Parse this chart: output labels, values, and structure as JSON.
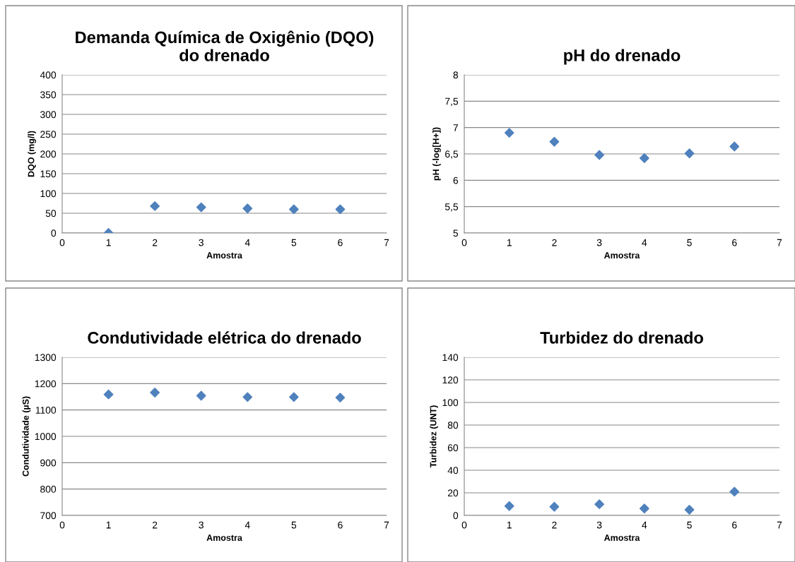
{
  "chart_data": [
    {
      "type": "scatter",
      "title": "Demanda Química de Oxigênio (DQO)\ndo drenado",
      "xlabel": "Amostra",
      "ylabel": "DQO (mg/l)",
      "x": [
        1,
        2,
        3,
        4,
        5,
        6
      ],
      "series": [
        {
          "color": "#4f81bd",
          "values": [
            0,
            68,
            65,
            62,
            60,
            60
          ]
        }
      ],
      "xlim": [
        0,
        7
      ],
      "xticks": [
        0,
        1,
        2,
        3,
        4,
        5,
        6,
        7
      ],
      "ylim": [
        0,
        400
      ],
      "yticks": [
        0,
        50,
        100,
        150,
        200,
        250,
        300,
        350,
        400
      ],
      "grid": "y",
      "marker": "diamond",
      "legend": false
    },
    {
      "type": "scatter",
      "title": "pH do drenado",
      "xlabel": "Amostra",
      "ylabel": "pH (-log[H+])",
      "x": [
        1,
        2,
        3,
        4,
        5,
        6
      ],
      "series": [
        {
          "color": "#4f81bd",
          "values": [
            6.9,
            6.73,
            6.48,
            6.42,
            6.51,
            6.64
          ]
        }
      ],
      "xlim": [
        0,
        7
      ],
      "xticks": [
        0,
        1,
        2,
        3,
        4,
        5,
        6,
        7
      ],
      "ylim": [
        5,
        8
      ],
      "yticks": [
        5,
        {
          "value": 5.5,
          "label": "5,5"
        },
        6,
        {
          "value": 6.5,
          "label": "6,5"
        },
        7,
        {
          "value": 7.5,
          "label": "7,5"
        },
        8
      ],
      "grid": "y",
      "marker": "diamond",
      "legend": false
    },
    {
      "type": "scatter",
      "title": "Condutividade elétrica do drenado",
      "xlabel": "Amostra",
      "ylabel": "Condutividade (µS)",
      "x": [
        1,
        2,
        3,
        4,
        5,
        6
      ],
      "series": [
        {
          "color": "#4f81bd",
          "values": [
            1159,
            1166,
            1154,
            1149,
            1149,
            1147
          ]
        }
      ],
      "xlim": [
        0,
        7
      ],
      "xticks": [
        0,
        1,
        2,
        3,
        4,
        5,
        6,
        7
      ],
      "ylim": [
        700,
        1300
      ],
      "yticks": [
        700,
        800,
        900,
        1000,
        1100,
        1200,
        1300
      ],
      "grid": "y",
      "marker": "diamond",
      "legend": false
    },
    {
      "type": "scatter",
      "title": "Turbidez do drenado",
      "xlabel": "Amostra",
      "ylabel": "Turbidez (UNT)",
      "x": [
        1,
        2,
        3,
        4,
        5,
        6
      ],
      "series": [
        {
          "color": "#4f81bd",
          "values": [
            8.3,
            7.7,
            9.9,
            6.1,
            5.0,
            21
          ]
        }
      ],
      "xlim": [
        0,
        7
      ],
      "xticks": [
        0,
        1,
        2,
        3,
        4,
        5,
        6,
        7
      ],
      "ylim": [
        0,
        140
      ],
      "yticks": [
        0,
        20,
        40,
        60,
        80,
        100,
        120,
        140
      ],
      "grid": "y",
      "marker": "diamond",
      "legend": false
    }
  ]
}
